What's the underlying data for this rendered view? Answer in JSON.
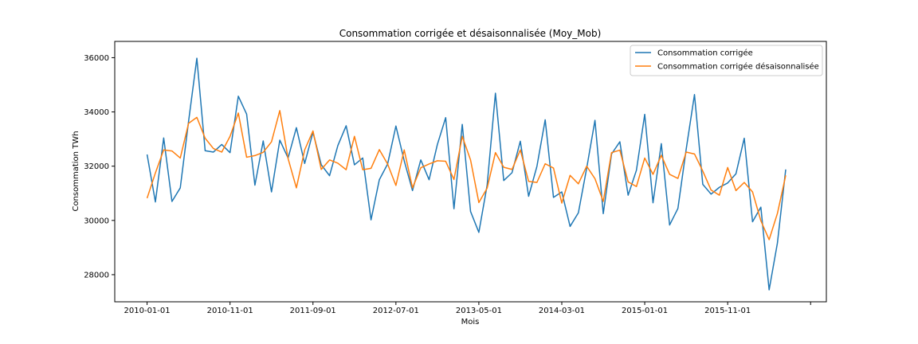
{
  "chart_data": {
    "type": "line",
    "title": "Consommation corrigée et désaisonnalisée (Moy_Mob)",
    "xlabel": "Mois",
    "ylabel": "Consommation TWh",
    "x_start": "2010-01-01",
    "x_step": "1 month",
    "x_tick_labels": [
      "2010-01-01",
      "2010-11-01",
      "2011-09-01",
      "2012-07-01",
      "2013-05-01",
      "2014-03-01",
      "2015-01-01",
      "2015-11-01",
      ""
    ],
    "y_ticks": [
      28000,
      30000,
      32000,
      34000,
      36000
    ],
    "ylim": [
      27000,
      36600
    ],
    "grid": false,
    "legend_position": "top-right",
    "series": [
      {
        "name": "Consommation corrigée",
        "color": "#1f77b4",
        "values": [
          32430,
          30680,
          33040,
          30700,
          31200,
          33650,
          35980,
          32570,
          32520,
          32800,
          32500,
          34580,
          33920,
          31300,
          32930,
          31050,
          32960,
          32300,
          33420,
          32100,
          33250,
          32050,
          31650,
          32760,
          33490,
          32050,
          32300,
          30020,
          31500,
          32080,
          33480,
          32200,
          31100,
          32230,
          31500,
          32800,
          33790,
          30430,
          33540,
          30330,
          29560,
          31300,
          34690,
          31470,
          31760,
          32920,
          30890,
          31990,
          33710,
          30850,
          31050,
          29780,
          30280,
          31920,
          33690,
          30250,
          32450,
          32900,
          30930,
          31850,
          33910,
          30650,
          32830,
          29830,
          30440,
          32630,
          34640,
          31330,
          30970,
          31220,
          31380,
          31720,
          33030,
          29950,
          30490,
          27440,
          29170,
          31880
        ]
      },
      {
        "name": "Consommation corrigée désaisonnalisée",
        "color": "#ff7f0e",
        "values": [
          30820,
          31750,
          32600,
          32560,
          32300,
          33580,
          33800,
          33030,
          32650,
          32520,
          33100,
          33960,
          32330,
          32390,
          32510,
          32900,
          34050,
          32280,
          31200,
          32600,
          33300,
          31880,
          32230,
          32110,
          31870,
          33100,
          31870,
          31920,
          32610,
          32080,
          31290,
          32600,
          31200,
          31940,
          32080,
          32200,
          32180,
          31510,
          33100,
          32230,
          30660,
          31190,
          32500,
          31960,
          31880,
          32600,
          31440,
          31400,
          32090,
          31930,
          30640,
          31660,
          31350,
          32000,
          31540,
          30700,
          32500,
          32590,
          31420,
          31250,
          32300,
          31700,
          32400,
          31700,
          31550,
          32520,
          32450,
          31820,
          31120,
          30930,
          31950,
          31100,
          31400,
          31050,
          29990,
          29290,
          30260,
          31660
        ]
      }
    ]
  }
}
